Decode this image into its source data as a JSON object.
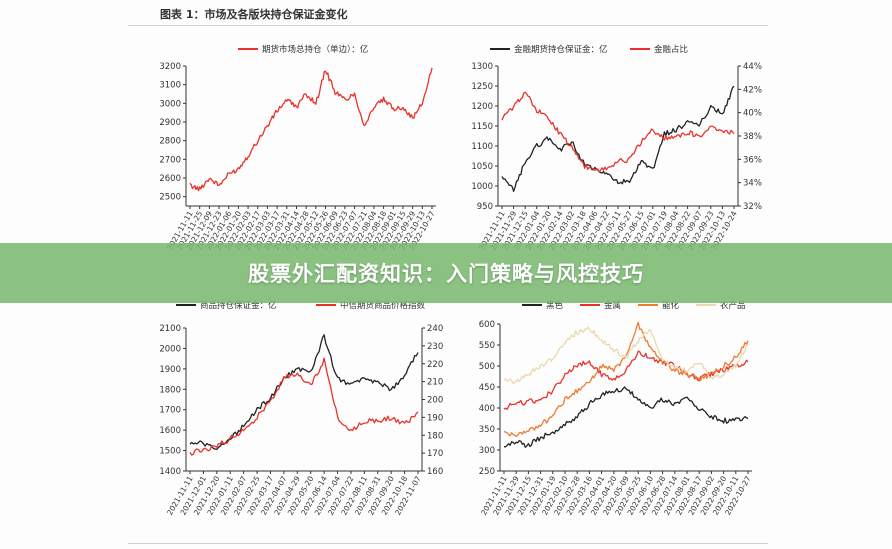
{
  "figure": {
    "title": "图表 1：市场及各版块持仓保证金变化"
  },
  "banner": {
    "text": "股票外汇配资知识：入门策略与风控技巧"
  },
  "colors": {
    "red": "#e8322b",
    "black": "#222222",
    "orange": "#ec7d33",
    "beige": "#ecd8b0"
  },
  "chart_data": [
    {
      "type": "line",
      "title": "",
      "x_ticks": [
        "2021-11-11",
        "2021-11-25",
        "2021-12-09",
        "2021-12-23",
        "2022-01-06",
        "2022-01-20",
        "2022-02-03",
        "2022-02-17",
        "2022-03-03",
        "2022-03-17",
        "2022-03-31",
        "2022-04-14",
        "2022-04-28",
        "2022-05-12",
        "2022-05-26",
        "2022-06-09",
        "2022-06-23",
        "2022-07-07",
        "2022-07-21",
        "2022-08-04",
        "2022-08-18",
        "2022-09-01",
        "2022-09-15",
        "2022-09-29",
        "2022-10-13",
        "2022-10-27"
      ],
      "y_left": {
        "ticks": [
          2500,
          2600,
          2700,
          2800,
          2900,
          3000,
          3100,
          3200
        ],
        "lim": [
          2450,
          3200
        ]
      },
      "legend": [
        "期货市场总持仓（单边）：亿"
      ],
      "series": [
        {
          "name": "期货市场总持仓（单边）：亿",
          "color": "#e8322b",
          "axis": "left",
          "values": [
            2560,
            2540,
            2600,
            2560,
            2620,
            2650,
            2720,
            2800,
            2880,
            2960,
            3020,
            2980,
            3050,
            3000,
            3180,
            3060,
            3020,
            3050,
            2880,
            2980,
            3020,
            2970,
            2980,
            2920,
            3000,
            3190
          ]
        }
      ]
    },
    {
      "type": "line",
      "title": "",
      "x_ticks": [
        "2021-11-11",
        "2021-11-29",
        "2021-12-15",
        "2022-01-04",
        "2022-01-20",
        "2022-02-14",
        "2022-03-02",
        "2022-03-18",
        "2022-04-06",
        "2022-04-22",
        "2022-05-11",
        "2022-05-27",
        "2022-06-15",
        "2022-07-01",
        "2022-07-19",
        "2022-08-04",
        "2022-08-22",
        "2022-09-07",
        "2022-09-23",
        "2022-10-13",
        "2022-10-24"
      ],
      "y_left": {
        "ticks": [
          950,
          1000,
          1050,
          1100,
          1150,
          1200,
          1250,
          1300
        ],
        "lim": [
          950,
          1300
        ]
      },
      "y_right": {
        "ticks": [
          "32%",
          "34%",
          "36%",
          "38%",
          "40%",
          "42%",
          "44%"
        ],
        "lim": [
          32,
          44
        ]
      },
      "legend": [
        "金融期货持仓保证金：亿",
        "金融占比"
      ],
      "series": [
        {
          "name": "金融期货持仓保证金：亿",
          "color": "#222222",
          "axis": "left",
          "values": [
            1020,
            990,
            1060,
            1100,
            1120,
            1090,
            1110,
            1060,
            1040,
            1030,
            1010,
            1010,
            1060,
            1040,
            1130,
            1140,
            1160,
            1150,
            1200,
            1180,
            1250
          ]
        },
        {
          "name": "金融占比",
          "color": "#e8322b",
          "axis": "right",
          "values": [
            39.5,
            40.5,
            41.8,
            40.2,
            39.5,
            38.2,
            37.0,
            35.5,
            35.0,
            35.2,
            35.8,
            36.0,
            37.5,
            38.5,
            37.8,
            38.0,
            38.3,
            38.0,
            38.8,
            38.5,
            38.2
          ]
        }
      ]
    },
    {
      "type": "line",
      "title": "",
      "x_ticks": [
        "2021-11-11",
        "2021-12-01",
        "2021-12-20",
        "2022-01-11",
        "2022-02-07",
        "2022-02-25",
        "2022-03-17",
        "2022-04-07",
        "2022-04-29",
        "2022-05-20",
        "2022-06-14",
        "2022-07-04",
        "2022-07-22",
        "2022-08-11",
        "2022-08-31",
        "2022-09-20",
        "2022-10-18",
        "2022-11-07"
      ],
      "y_left": {
        "ticks": [
          1400,
          1500,
          1600,
          1700,
          1800,
          1900,
          2000,
          2100
        ],
        "lim": [
          1400,
          2100
        ]
      },
      "y_right": {
        "ticks": [
          160,
          170,
          180,
          190,
          200,
          210,
          220,
          230,
          240
        ],
        "lim": [
          160,
          240
        ]
      },
      "legend": [
        "商品持仓保证金：亿",
        "中信期货商品价格指数"
      ],
      "series": [
        {
          "name": "商品持仓保证金：亿",
          "color": "#222222",
          "axis": "left",
          "values": [
            1530,
            1540,
            1500,
            1560,
            1620,
            1700,
            1760,
            1850,
            1900,
            1890,
            2060,
            1850,
            1820,
            1850,
            1830,
            1800,
            1870,
            1980
          ]
        },
        {
          "name": "中信期货商品价格指数",
          "color": "#e8322b",
          "axis": "right",
          "values": [
            170,
            172,
            174,
            178,
            183,
            190,
            199,
            212,
            214,
            208,
            222,
            190,
            182,
            188,
            188,
            190,
            186,
            193
          ]
        }
      ]
    },
    {
      "type": "line",
      "title": "",
      "x_ticks": [
        "2021-11-11",
        "2021-11-29",
        "2021-12-15",
        "2021-12-31",
        "2022-01-19",
        "2022-02-10",
        "2022-02-28",
        "2022-03-16",
        "2022-04-01",
        "2022-04-20",
        "2022-05-09",
        "2022-05-25",
        "2022-06-10",
        "2022-06-28",
        "2022-07-14",
        "2022-08-01",
        "2022-08-17",
        "2022-09-02",
        "2022-09-20",
        "2022-10-11",
        "2022-10-27"
      ],
      "y_left": {
        "ticks": [
          250,
          300,
          350,
          400,
          450,
          500,
          550,
          600
        ],
        "lim": [
          250,
          600
        ]
      },
      "legend": [
        "黑色",
        "金属",
        "能化",
        "农产品"
      ],
      "series": [
        {
          "name": "黑色",
          "color": "#222222",
          "axis": "left",
          "values": [
            305,
            320,
            310,
            330,
            340,
            360,
            380,
            410,
            430,
            440,
            450,
            420,
            400,
            420,
            410,
            420,
            400,
            380,
            370,
            370,
            375
          ]
        },
        {
          "name": "金属",
          "color": "#e8322b",
          "axis": "left",
          "values": [
            400,
            410,
            415,
            420,
            440,
            480,
            500,
            510,
            480,
            470,
            490,
            530,
            520,
            510,
            500,
            480,
            470,
            480,
            490,
            500,
            510
          ]
        },
        {
          "name": "能化",
          "color": "#ec7d33",
          "axis": "left",
          "values": [
            345,
            335,
            345,
            360,
            380,
            420,
            440,
            460,
            500,
            490,
            520,
            600,
            540,
            510,
            490,
            480,
            470,
            480,
            500,
            520,
            560
          ]
        },
        {
          "name": "农产品",
          "color": "#ecd8b0",
          "axis": "left",
          "values": [
            470,
            460,
            480,
            500,
            520,
            560,
            580,
            590,
            560,
            540,
            520,
            560,
            590,
            510,
            500,
            490,
            510,
            470,
            480,
            500,
            550
          ]
        }
      ]
    }
  ]
}
